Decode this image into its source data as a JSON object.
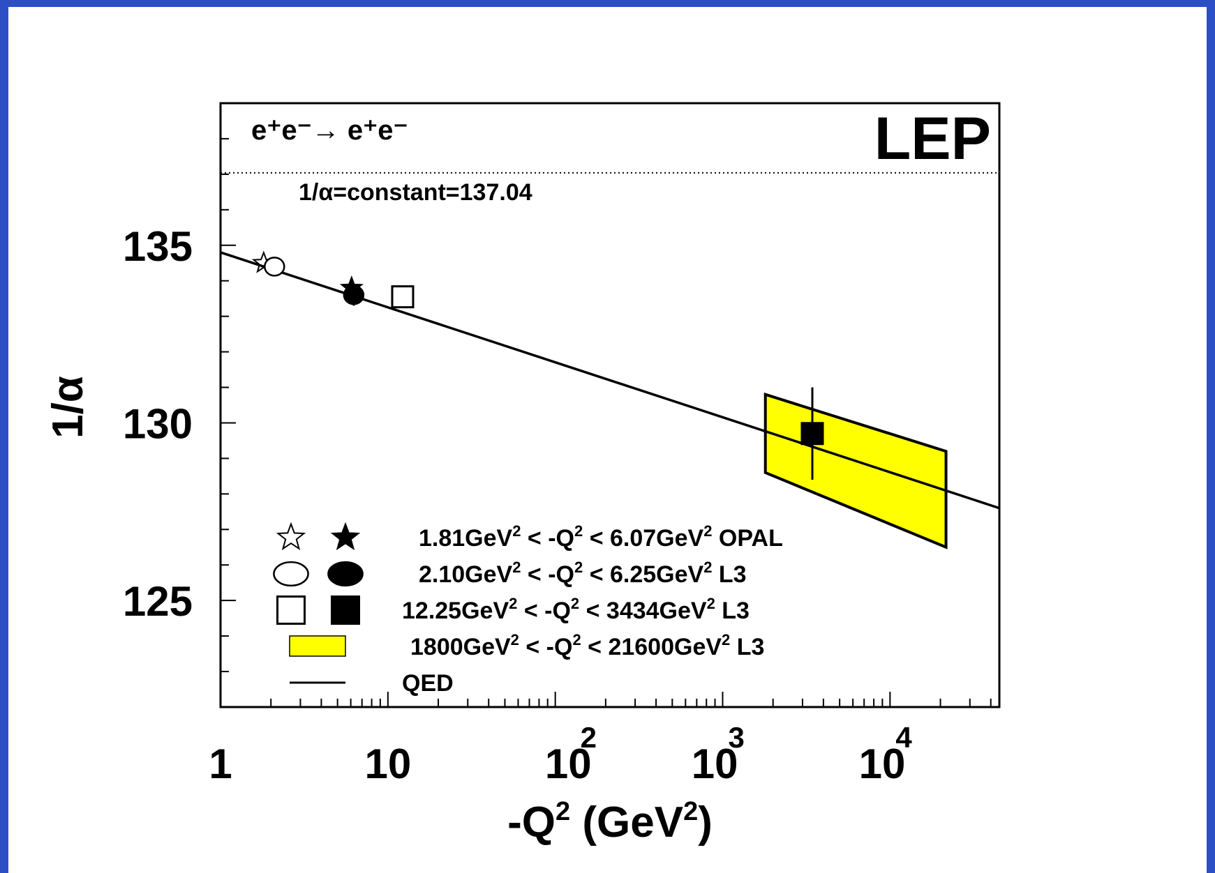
{
  "chart_data": {
    "type": "scatter",
    "title": "LEP",
    "process": "e⁺e⁻→ e⁺e⁻",
    "xlabel": {
      "base": "-Q",
      "sup1": "2",
      "mid": " (GeV",
      "sup2": "2",
      "end": ")"
    },
    "ylabel": "1/α",
    "x_scale": "log",
    "xlim": [
      1,
      45000
    ],
    "ylim": [
      122,
      139
    ],
    "x_ticks": [
      {
        "base": "1",
        "exp": ""
      },
      {
        "base": "10",
        "exp": ""
      },
      {
        "base": "10",
        "exp": "2"
      },
      {
        "base": "10",
        "exp": "3"
      },
      {
        "base": "10",
        "exp": "4"
      }
    ],
    "y_ticks": [
      "125",
      "130",
      "135"
    ],
    "reference_line": {
      "value": 137.04,
      "label": "1/α=constant=137.04",
      "style": "dotted"
    },
    "qed_curve": {
      "name": "QED",
      "points": [
        [
          1,
          134.8
        ],
        [
          45000,
          127.6
        ]
      ]
    },
    "series": [
      {
        "name": "1.81GeV² < -Q² < 6.07GeV² OPAL",
        "marker": "star",
        "open_points": [
          {
            "x": 1.81,
            "y": 134.5
          }
        ],
        "filled_points": [
          {
            "x": 6.07,
            "y": 133.8
          }
        ]
      },
      {
        "name": "2.10GeV² < -Q² < 6.25GeV² L3",
        "marker": "circle",
        "open_points": [
          {
            "x": 2.1,
            "y": 134.4
          }
        ],
        "filled_points": [
          {
            "x": 6.25,
            "y": 133.6,
            "yerr": 0.3
          }
        ]
      },
      {
        "name": "12.25GeV² < -Q² < 3434GeV² L3",
        "marker": "square",
        "open_points": [
          {
            "x": 12.25,
            "y": 133.55
          }
        ],
        "filled_points": [
          {
            "x": 3434,
            "y": 129.7,
            "yerr": 1.3
          }
        ]
      },
      {
        "name": "1800GeV² < -Q² < 21600GeV² L3",
        "marker": "band",
        "band": {
          "x0": 1800,
          "x1": 21600,
          "y0_low": 128.6,
          "y0_high": 130.8,
          "y1_low": 126.5,
          "y1_high": 129.2
        },
        "color": "#ffff00"
      }
    ],
    "legend": [
      {
        "marker": "star",
        "parts": [
          "1.81GeV",
          "2",
          " < -Q",
          "2",
          " < 6.07GeV",
          "2",
          " OPAL"
        ]
      },
      {
        "marker": "circle",
        "parts": [
          "2.10GeV",
          "2",
          " < -Q",
          "2",
          " < 6.25GeV",
          "2",
          " L3"
        ]
      },
      {
        "marker": "square",
        "parts": [
          "12.25GeV",
          "2",
          " < -Q",
          "2",
          " < 3434GeV",
          "2",
          " L3"
        ]
      },
      {
        "marker": "band",
        "parts": [
          "1800GeV",
          "2",
          " < -Q",
          "2",
          " < 21600GeV",
          "2",
          " L3"
        ]
      },
      {
        "marker": "line",
        "parts": [
          "QED"
        ]
      }
    ],
    "grid": false,
    "colors": {
      "frame": "#2d4fc6",
      "band": "#ffff00",
      "ink": "#000000"
    }
  }
}
